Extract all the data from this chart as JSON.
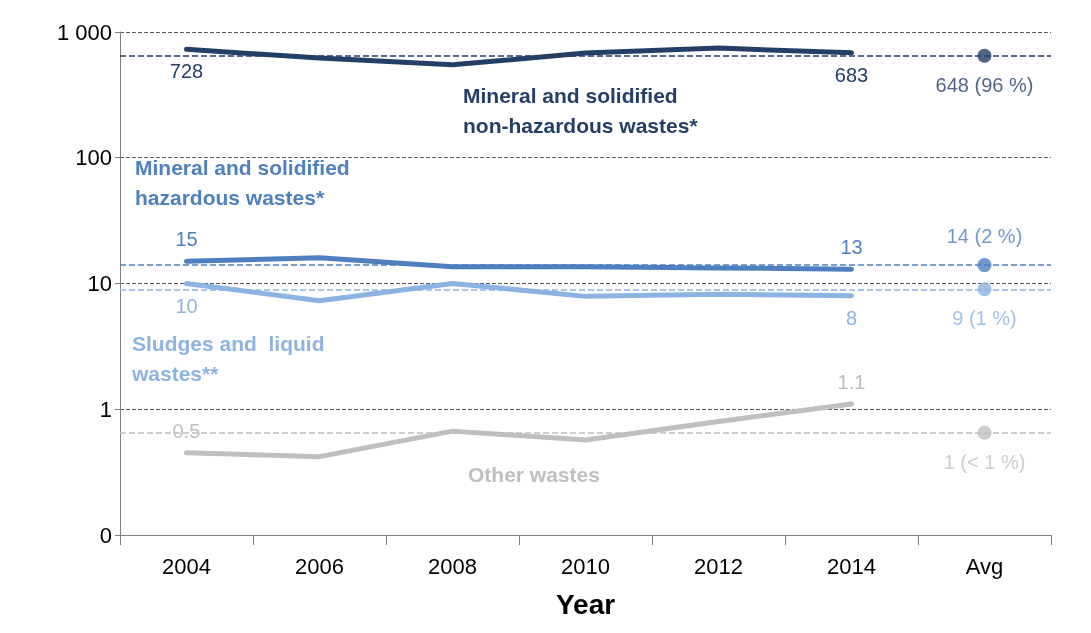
{
  "chart_data": {
    "type": "line",
    "xlabel": "Year",
    "log": "y",
    "categories": [
      "2004",
      "2006",
      "2008",
      "2010",
      "2012",
      "2014",
      "Avg"
    ],
    "ylim": [
      0.1,
      1000
    ],
    "yticks": [
      {
        "value": 0.1,
        "label": "0"
      },
      1,
      10,
      100,
      {
        "value": 1000,
        "label": "1 000"
      }
    ],
    "grid": "y",
    "legend": false,
    "marker": "none",
    "line_style": "solid",
    "series": [
      {
        "name": "Mineral and solidified\nnon-hazardous wastes*",
        "color": "#243f66",
        "values": [
          728,
          620,
          548,
          680,
          745,
          683,
          null
        ],
        "value_labels": [
          "728",
          null,
          null,
          null,
          null,
          "683",
          null
        ]
      },
      {
        "name": "Mineral and solidified\nhazardous wastes*",
        "color": "#4f7fbf",
        "values": [
          15,
          16,
          13.6,
          13.6,
          13.3,
          13,
          null
        ],
        "value_labels": [
          "15",
          null,
          null,
          null,
          null,
          "13",
          null
        ]
      },
      {
        "name": "Sludges and  liquid\nwastes**",
        "color": "#8db3e2",
        "values": [
          10,
          7.3,
          10,
          7.9,
          8.2,
          8,
          null
        ],
        "value_labels": [
          "10",
          null,
          null,
          null,
          null,
          "8",
          null
        ]
      },
      {
        "name": "Other wastes",
        "color": "#bfbfbf",
        "values": [
          0.45,
          0.42,
          0.67,
          0.57,
          0.8,
          1.1,
          null
        ],
        "value_labels": [
          "0.5",
          null,
          null,
          null,
          null,
          "1.1",
          null
        ]
      },
      {
        "type": "scatter",
        "marker": "circle",
        "x": [
          "Avg",
          "Avg",
          "Avg",
          "Avg"
        ],
        "values": [
          648,
          14,
          9,
          0.65
        ],
        "colors": [
          "#243f66",
          "#4f7fbf",
          "#8db3e2",
          "#bfbfbf"
        ],
        "value_labels": [
          "648 (96 %)",
          "14 (2 %)",
          "9 (1 %)",
          "1 (< 1 %)"
        ]
      }
    ],
    "ref_lines": [
      {
        "axis": "y",
        "value": 648,
        "color": "#243f66",
        "line_style": "dashed"
      },
      {
        "axis": "y",
        "value": 14,
        "color": "#4f7fbf",
        "line_style": "dashed"
      },
      {
        "axis": "y",
        "value": 9,
        "color": "#8db3e2",
        "line_style": "dashed"
      },
      {
        "axis": "y",
        "value": 0.65,
        "color": "#bfbfbf",
        "line_style": "dashed"
      }
    ]
  }
}
